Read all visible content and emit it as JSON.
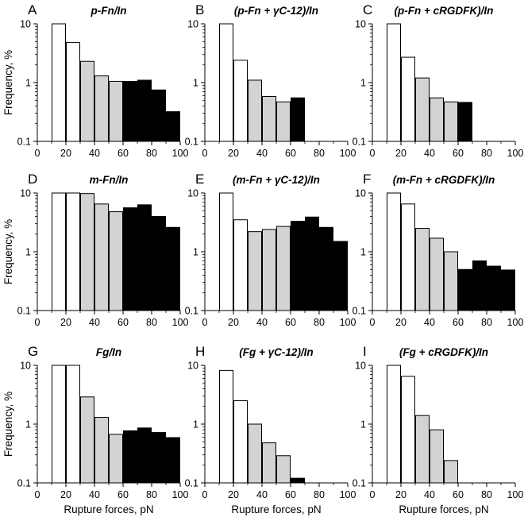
{
  "figure": {
    "ylabel": "Frequency, %",
    "xlabel": "Rupture forces, pN"
  },
  "colors": {
    "open": "#ffffff",
    "gray": "#d3d3d3",
    "black": "#000000",
    "edge": "#000000"
  },
  "chart_data": [
    {
      "type": "bar",
      "letter": "A",
      "title": "p-Fn/In",
      "x": [
        15,
        25,
        35,
        45,
        55,
        65,
        75,
        85,
        95
      ],
      "values": [
        10,
        4.8,
        2.3,
        1.3,
        1.05,
        1.05,
        1.1,
        0.75,
        0.32
      ],
      "fills": [
        "open",
        "open",
        "gray",
        "gray",
        "gray",
        "black",
        "black",
        "black",
        "black"
      ],
      "xlim": [
        0,
        100
      ],
      "ylim": [
        0.1,
        10
      ],
      "yscale": "log",
      "xticks": [
        "0",
        "20",
        "40",
        "60",
        "80",
        "100"
      ],
      "yticks": [
        "0.1",
        "1",
        "10"
      ]
    },
    {
      "type": "bar",
      "letter": "B",
      "title": "(p-Fn + γC-12)/In",
      "x": [
        15,
        25,
        35,
        45,
        55,
        65
      ],
      "values": [
        10,
        2.4,
        1.1,
        0.58,
        0.47,
        0.55
      ],
      "fills": [
        "open",
        "open",
        "gray",
        "gray",
        "gray",
        "black"
      ],
      "xlim": [
        0,
        100
      ],
      "ylim": [
        0.1,
        10
      ],
      "yscale": "log",
      "xticks": [
        "0",
        "20",
        "40",
        "60",
        "80",
        "100"
      ],
      "yticks": [
        "0.1",
        "1",
        "10"
      ]
    },
    {
      "type": "bar",
      "letter": "C",
      "title": "(p-Fn + cRGDFK)/In",
      "x": [
        15,
        25,
        35,
        45,
        55,
        65
      ],
      "values": [
        10,
        2.7,
        1.2,
        0.55,
        0.47,
        0.46
      ],
      "fills": [
        "open",
        "open",
        "gray",
        "gray",
        "gray",
        "black"
      ],
      "xlim": [
        0,
        100
      ],
      "ylim": [
        0.1,
        10
      ],
      "yscale": "log",
      "xticks": [
        "0",
        "20",
        "40",
        "60",
        "80",
        "100"
      ],
      "yticks": [
        "0.1",
        "1",
        "10"
      ]
    },
    {
      "type": "bar",
      "letter": "D",
      "title": "m-Fn/In",
      "x": [
        15,
        25,
        35,
        45,
        55,
        65,
        75,
        85,
        95
      ],
      "values": [
        10,
        10,
        9.8,
        6.5,
        4.8,
        5.6,
        6.3,
        4.0,
        2.6
      ],
      "fills": [
        "open",
        "open",
        "gray",
        "gray",
        "gray",
        "black",
        "black",
        "black",
        "black"
      ],
      "xlim": [
        0,
        100
      ],
      "ylim": [
        0.1,
        10
      ],
      "yscale": "log",
      "xticks": [
        "0",
        "20",
        "40",
        "60",
        "80",
        "100"
      ],
      "yticks": [
        "0.1",
        "1",
        "10"
      ]
    },
    {
      "type": "bar",
      "letter": "E",
      "title": "(m-Fn + γC-12)/In",
      "x": [
        15,
        25,
        35,
        45,
        55,
        65,
        75,
        85,
        95
      ],
      "values": [
        10,
        3.5,
        2.2,
        2.4,
        2.7,
        3.3,
        3.9,
        2.6,
        1.5
      ],
      "fills": [
        "open",
        "open",
        "gray",
        "gray",
        "gray",
        "black",
        "black",
        "black",
        "black"
      ],
      "xlim": [
        0,
        100
      ],
      "ylim": [
        0.1,
        10
      ],
      "yscale": "log",
      "xticks": [
        "0",
        "20",
        "40",
        "60",
        "80",
        "100"
      ],
      "yticks": [
        "0.1",
        "1",
        "10"
      ]
    },
    {
      "type": "bar",
      "letter": "F",
      "title": "(m-Fn + cRGDFK)/In",
      "x": [
        15,
        25,
        35,
        45,
        55,
        65,
        75,
        85,
        95
      ],
      "values": [
        10,
        6.5,
        2.5,
        1.7,
        1.0,
        0.5,
        0.7,
        0.57,
        0.49
      ],
      "fills": [
        "open",
        "open",
        "gray",
        "gray",
        "gray",
        "black",
        "black",
        "black",
        "black"
      ],
      "xlim": [
        0,
        100
      ],
      "ylim": [
        0.1,
        10
      ],
      "yscale": "log",
      "xticks": [
        "0",
        "20",
        "40",
        "60",
        "80",
        "100"
      ],
      "yticks": [
        "0.1",
        "1",
        "10"
      ]
    },
    {
      "type": "bar",
      "letter": "G",
      "title": "Fg/In",
      "x": [
        15,
        25,
        35,
        45,
        55,
        65,
        75,
        85,
        95
      ],
      "values": [
        10,
        10,
        2.9,
        1.3,
        0.67,
        0.77,
        0.86,
        0.72,
        0.59
      ],
      "fills": [
        "open",
        "open",
        "gray",
        "gray",
        "gray",
        "black",
        "black",
        "black",
        "black"
      ],
      "xlim": [
        0,
        100
      ],
      "ylim": [
        0.1,
        10
      ],
      "yscale": "log",
      "xticks": [
        "0",
        "20",
        "40",
        "60",
        "80",
        "100"
      ],
      "yticks": [
        "0.1",
        "1",
        "10"
      ]
    },
    {
      "type": "bar",
      "letter": "H",
      "title": "(Fg + γC-12)/In",
      "x": [
        15,
        25,
        35,
        45,
        55,
        65
      ],
      "values": [
        8.2,
        2.5,
        1.0,
        0.48,
        0.29,
        0.12
      ],
      "fills": [
        "open",
        "open",
        "gray",
        "gray",
        "gray",
        "black"
      ],
      "xlim": [
        0,
        100
      ],
      "ylim": [
        0.1,
        10
      ],
      "yscale": "log",
      "xticks": [
        "0",
        "20",
        "40",
        "60",
        "80",
        "100"
      ],
      "yticks": [
        "0.1",
        "1",
        "10"
      ]
    },
    {
      "type": "bar",
      "letter": "I",
      "title": "(Fg + cRGDFK)/In",
      "x": [
        15,
        25,
        35,
        45,
        55
      ],
      "values": [
        10,
        6.5,
        1.4,
        0.8,
        0.24
      ],
      "fills": [
        "open",
        "open",
        "gray",
        "gray",
        "gray"
      ],
      "xlim": [
        0,
        100
      ],
      "ylim": [
        0.1,
        10
      ],
      "yscale": "log",
      "xticks": [
        "0",
        "20",
        "40",
        "60",
        "80",
        "100"
      ],
      "yticks": [
        "0.1",
        "1",
        "10"
      ]
    }
  ]
}
